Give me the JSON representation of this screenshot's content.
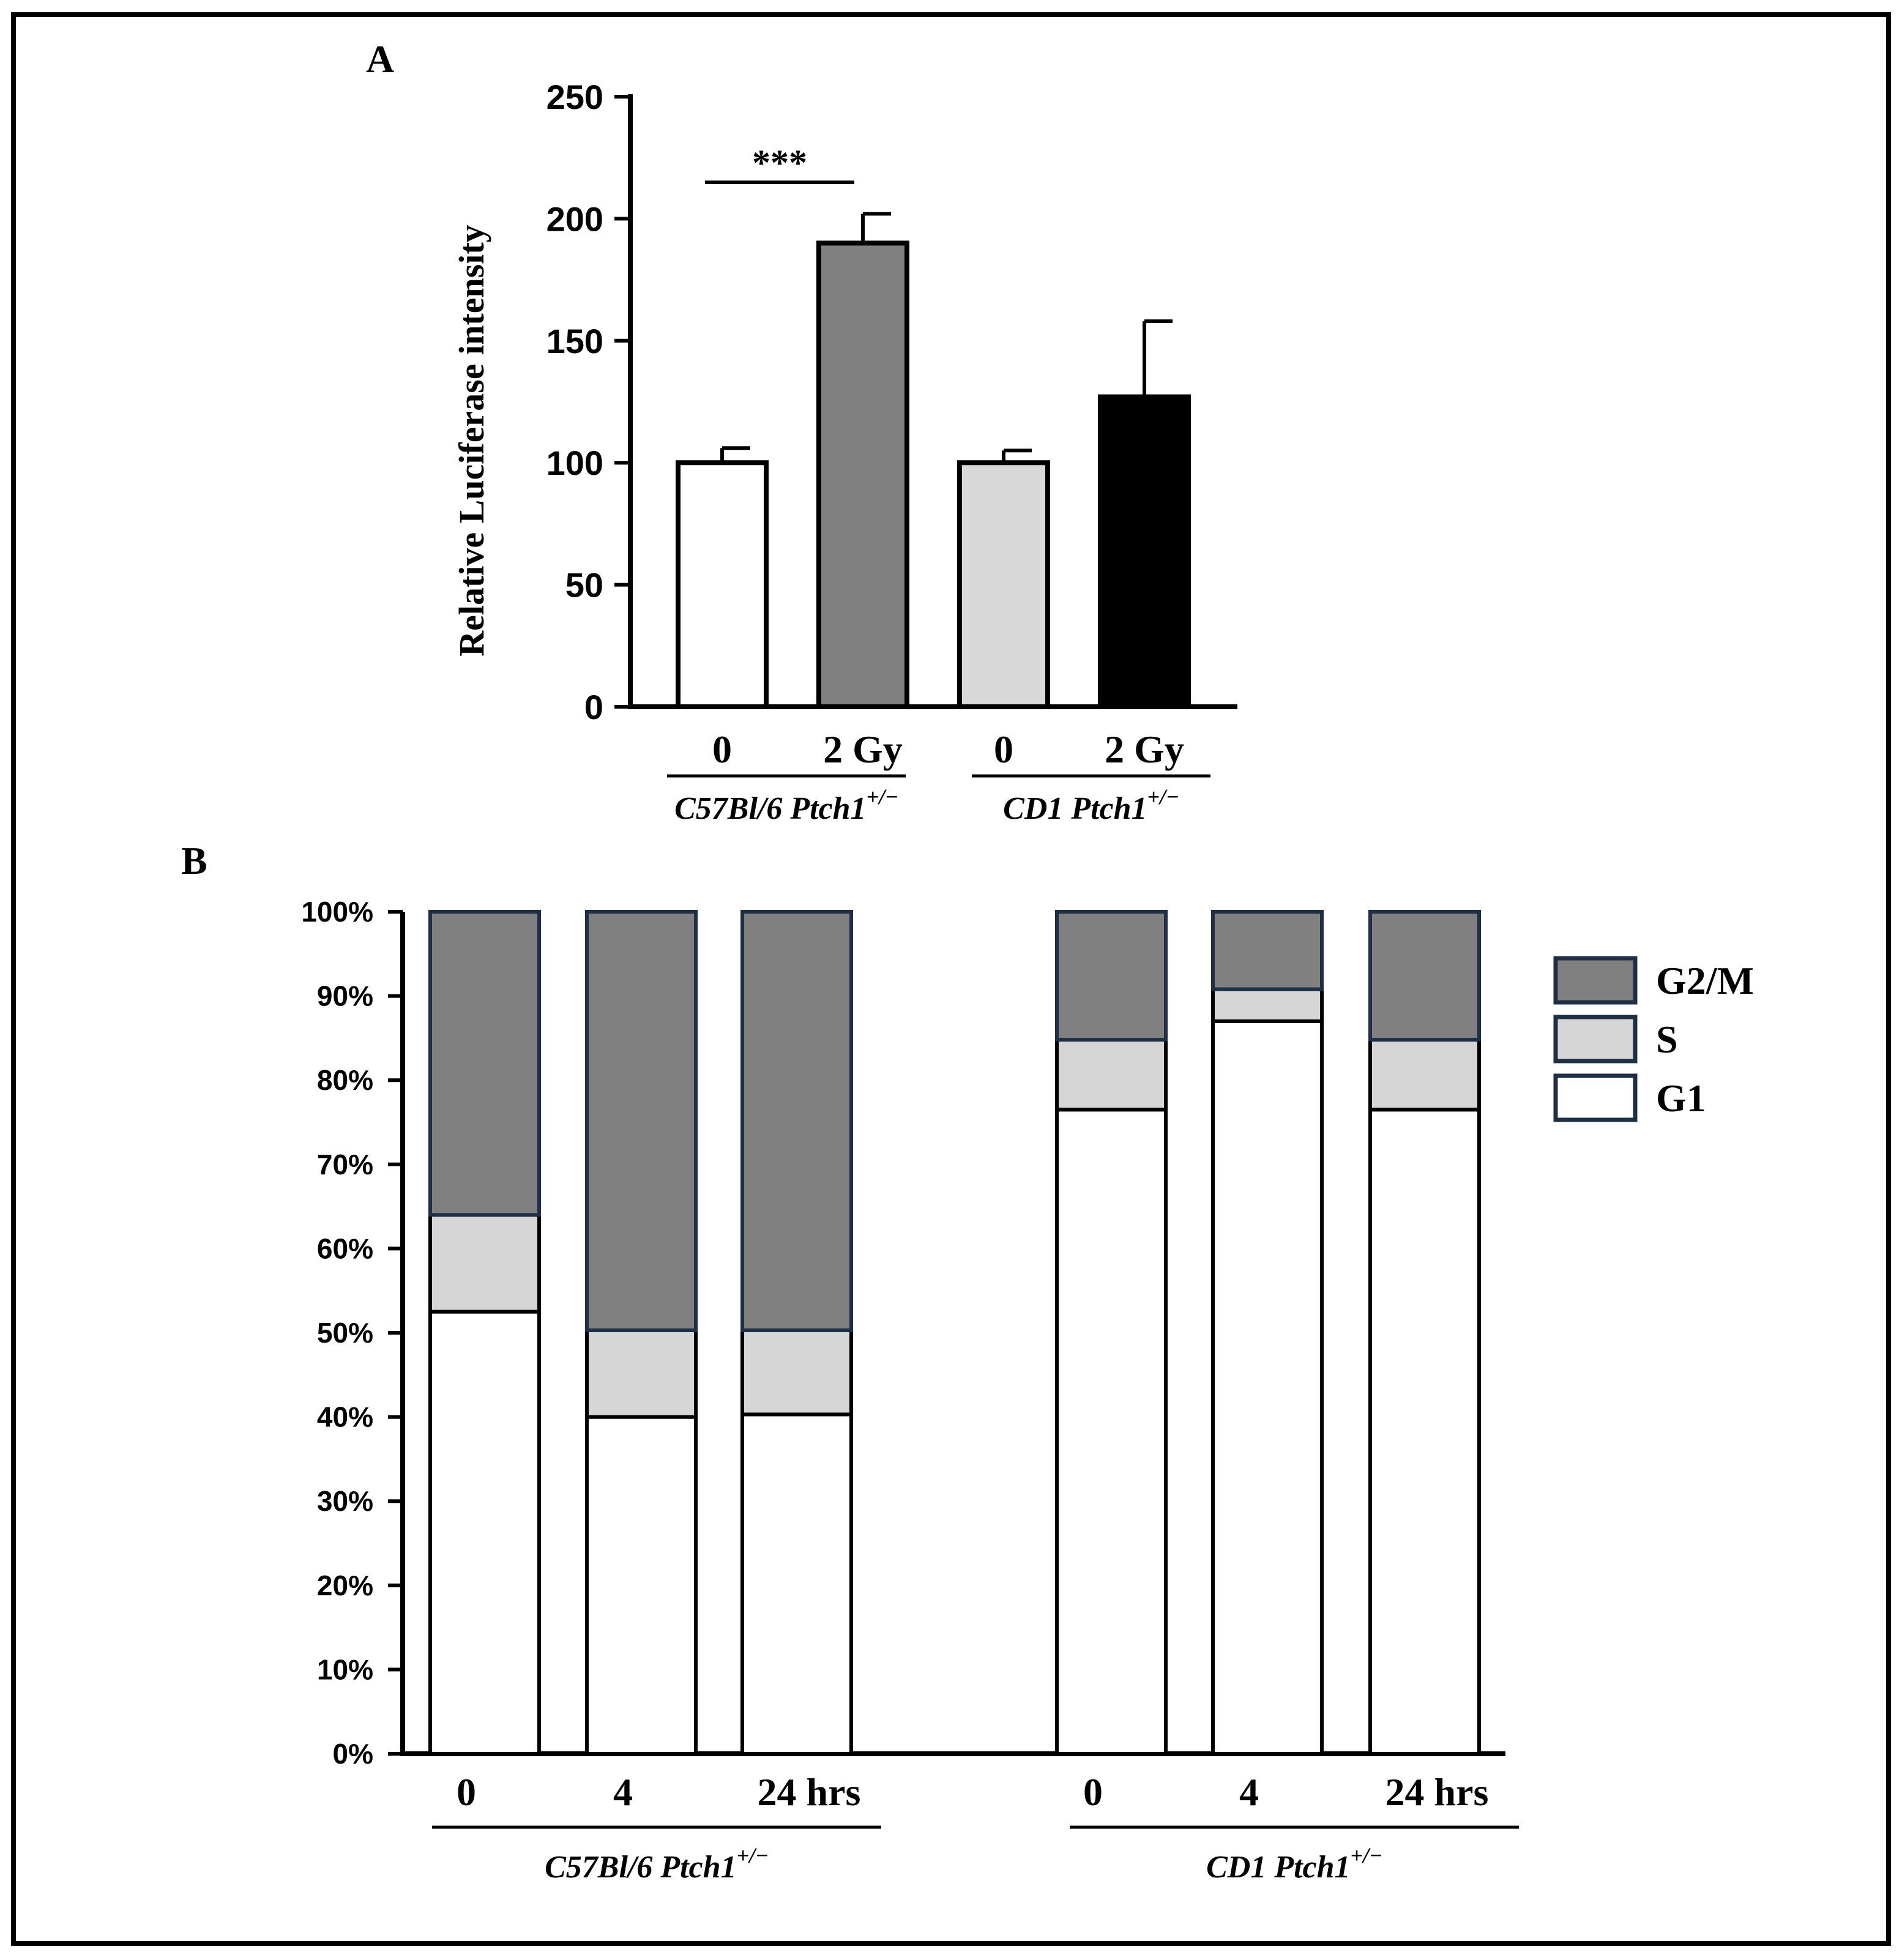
{
  "figure": {
    "panel_labels": [
      "A",
      "B"
    ]
  },
  "chart_data": [
    {
      "type": "bar",
      "panel": "A",
      "ylabel": "Relative Luciferase intensity",
      "xlabel": "",
      "ylim": [
        0,
        250
      ],
      "yticks": [
        0,
        50,
        100,
        150,
        200,
        250
      ],
      "categories": [
        "0",
        "2 Gy",
        "0",
        "2 Gy"
      ],
      "values": [
        100,
        190,
        100,
        127
      ],
      "errors": [
        6,
        12,
        5,
        31
      ],
      "colors": [
        "#ffffff",
        "#808080",
        "#d8d8d8",
        "#000000"
      ],
      "groups": [
        {
          "label": "C57Bl/6 Ptch1",
          "superscript": "+/−",
          "members": [
            0,
            1
          ]
        },
        {
          "label": "CD1 Ptch1",
          "superscript": "+/−",
          "members": [
            2,
            3
          ]
        }
      ],
      "significance": [
        {
          "between": [
            0,
            1
          ],
          "label": "***"
        }
      ]
    },
    {
      "type": "bar",
      "stacked": true,
      "panel": "B",
      "ylim": [
        0,
        100
      ],
      "yticks": [
        "0%",
        "10%",
        "20%",
        "30%",
        "40%",
        "50%",
        "60%",
        "70%",
        "80%",
        "90%",
        "100%"
      ],
      "categories": [
        "0",
        "4",
        "24 hrs",
        "0",
        "4",
        "24 hrs"
      ],
      "series": [
        {
          "name": "G1",
          "color": "#ffffff",
          "values": [
            52.5,
            40,
            40.3,
            76.5,
            87,
            76.5
          ]
        },
        {
          "name": "S",
          "color": "#d6d6d6",
          "values": [
            11.5,
            10.3,
            10,
            8.3,
            3.8,
            8.3
          ]
        },
        {
          "name": "G2/M",
          "color": "#808080",
          "values": [
            36,
            49.7,
            49.7,
            15.2,
            9.2,
            15.2
          ]
        }
      ],
      "legend": {
        "position": "right",
        "order": [
          "G2/M",
          "S",
          "G1"
        ]
      },
      "groups": [
        {
          "label": "C57Bl/6 Ptch1",
          "superscript": "+/−",
          "members": [
            0,
            1,
            2
          ]
        },
        {
          "label": "CD1 Ptch1",
          "superscript": "+/−",
          "members": [
            3,
            4,
            5
          ]
        }
      ]
    }
  ]
}
